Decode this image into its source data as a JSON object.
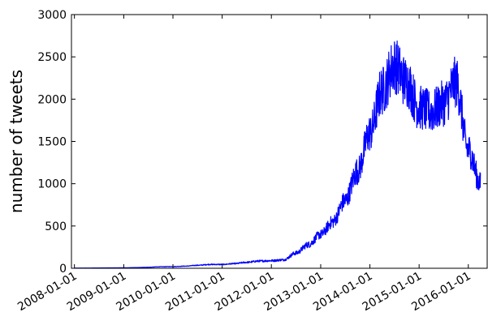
{
  "chart_data": {
    "type": "line",
    "title": "",
    "xlabel": "",
    "ylabel": "number of tweets",
    "x_axis_type": "date",
    "xlim": [
      "2007-12-10",
      "2016-05-20"
    ],
    "ylim": [
      0,
      3000
    ],
    "y_ticks": [
      0,
      500,
      1000,
      1500,
      2000,
      2500,
      3000
    ],
    "x_ticks": [
      "2008-01-01",
      "2009-01-01",
      "2010-01-01",
      "2011-01-01",
      "2012-01-01",
      "2013-01-01",
      "2014-01-01",
      "2015-01-01",
      "2016-01-01"
    ],
    "grid": false,
    "legend": "none",
    "series_color": "#0000ff",
    "series": [
      {
        "x": [
          "2008-01-01",
          "2008-04-01",
          "2008-07-01",
          "2008-10-01",
          "2009-01-01",
          "2009-04-01",
          "2009-07-01",
          "2009-10-01",
          "2010-01-01",
          "2010-04-01",
          "2010-07-01",
          "2010-10-01",
          "2011-01-01",
          "2011-04-01",
          "2011-07-01",
          "2011-10-01",
          "2012-01-01",
          "2012-04-01",
          "2012-07-01",
          "2012-10-01",
          "2013-01-01",
          "2013-04-01",
          "2013-07-01",
          "2013-10-01",
          "2014-01-01",
          "2014-04-01",
          "2014-07-01",
          "2014-10-01",
          "2015-01-01",
          "2015-04-01",
          "2015-07-01",
          "2015-10-01",
          "2016-01-01",
          "2016-04-01"
        ],
        "y": [
          2,
          3,
          4,
          5,
          6,
          8,
          12,
          18,
          20,
          25,
          35,
          45,
          45,
          55,
          70,
          85,
          90,
          100,
          180,
          280,
          400,
          550,
          800,
          1150,
          1600,
          2100,
          2400,
          2200,
          1900,
          1850,
          1950,
          2200,
          1400,
          1000
        ]
      }
    ]
  }
}
